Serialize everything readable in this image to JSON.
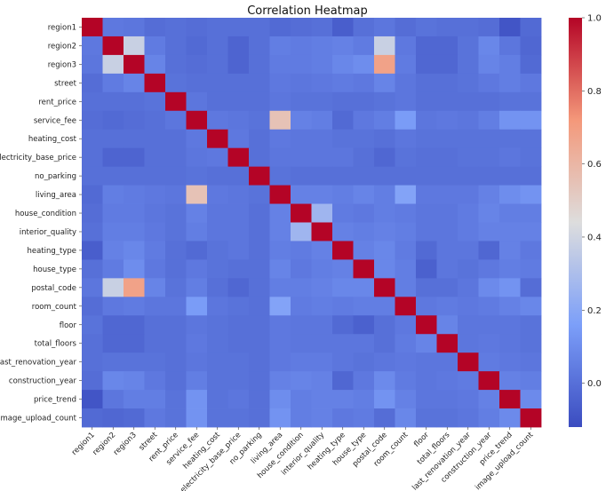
{
  "chart_data": {
    "type": "heatmap",
    "title": "Correlation Heatmap",
    "xlabel": "",
    "ylabel": "",
    "labels": [
      "region1",
      "region2",
      "region3",
      "street",
      "rent_price",
      "service_fee",
      "heating_cost",
      "electricity_base_price",
      "no_parking",
      "living_area",
      "house_condition",
      "interior_quality",
      "heating_type",
      "house_type",
      "postal_code",
      "room_count",
      "floor",
      "total_floors",
      "last_renovation_year",
      "construction_year",
      "price_trend",
      "image_upload_count"
    ],
    "colorbar": {
      "min": -0.12,
      "max": 1.0,
      "ticks": [
        0.0,
        0.2,
        0.4,
        0.6,
        0.8,
        1.0
      ],
      "tick_labels": [
        "0.0",
        "0.2",
        "0.4",
        "0.6",
        "0.8",
        "1.0"
      ],
      "colormap": "coolwarm"
    },
    "matrix": [
      [
        1.0,
        0.03,
        0.02,
        -0.01,
        0.0,
        -0.01,
        0.0,
        0.0,
        0.0,
        -0.02,
        -0.01,
        0.0,
        -0.06,
        0.0,
        0.02,
        -0.01,
        0.01,
        0.0,
        0.0,
        -0.01,
        -0.09,
        -0.02
      ],
      [
        0.03,
        1.0,
        0.38,
        0.04,
        0.0,
        -0.02,
        0.0,
        -0.04,
        0.0,
        0.05,
        0.04,
        0.05,
        0.06,
        0.04,
        0.38,
        0.03,
        -0.03,
        -0.03,
        0.01,
        0.08,
        0.02,
        -0.03
      ],
      [
        0.02,
        0.38,
        1.0,
        0.07,
        0.0,
        -0.01,
        0.0,
        -0.04,
        0.0,
        0.04,
        0.04,
        0.05,
        0.08,
        0.1,
        0.68,
        0.04,
        -0.03,
        -0.03,
        0.01,
        0.07,
        0.05,
        -0.02
      ],
      [
        -0.01,
        0.04,
        0.07,
        1.0,
        0.01,
        0.0,
        0.0,
        0.0,
        0.0,
        0.03,
        0.02,
        0.03,
        0.04,
        0.03,
        0.07,
        0.02,
        0.0,
        0.0,
        0.01,
        0.03,
        0.05,
        0.03
      ],
      [
        0.0,
        0.0,
        0.0,
        0.01,
        1.0,
        0.02,
        0.0,
        0.0,
        0.0,
        0.02,
        0.01,
        0.01,
        0.0,
        0.0,
        0.01,
        0.02,
        0.0,
        0.0,
        0.0,
        0.0,
        0.01,
        0.01
      ],
      [
        -0.01,
        -0.02,
        -0.01,
        0.0,
        0.02,
        1.0,
        0.03,
        0.02,
        0.01,
        0.55,
        0.06,
        0.05,
        -0.02,
        0.03,
        0.05,
        0.15,
        0.02,
        0.03,
        0.02,
        0.05,
        0.12,
        0.12
      ],
      [
        0.0,
        0.0,
        0.0,
        0.0,
        0.0,
        0.03,
        1.0,
        0.03,
        0.0,
        0.03,
        0.02,
        0.02,
        0.01,
        0.01,
        0.0,
        0.02,
        0.01,
        0.01,
        0.01,
        0.01,
        0.01,
        0.01
      ],
      [
        0.0,
        -0.04,
        -0.04,
        0.0,
        0.0,
        0.02,
        0.03,
        1.0,
        0.0,
        0.02,
        0.02,
        0.02,
        0.02,
        0.0,
        -0.03,
        0.01,
        0.0,
        0.0,
        0.01,
        0.01,
        0.02,
        0.01
      ],
      [
        0.0,
        0.0,
        0.0,
        0.0,
        0.0,
        0.01,
        0.0,
        0.0,
        1.0,
        0.01,
        0.0,
        0.0,
        0.0,
        0.0,
        0.0,
        0.0,
        0.0,
        0.0,
        0.0,
        0.0,
        0.0,
        0.0
      ],
      [
        -0.02,
        0.05,
        0.04,
        0.03,
        0.02,
        0.55,
        0.03,
        0.02,
        0.01,
        1.0,
        0.06,
        0.06,
        0.05,
        0.07,
        0.05,
        0.18,
        0.03,
        0.03,
        0.03,
        0.06,
        0.1,
        0.12
      ],
      [
        -0.01,
        0.04,
        0.04,
        0.02,
        0.01,
        0.06,
        0.02,
        0.02,
        0.0,
        0.06,
        1.0,
        0.26,
        0.04,
        0.03,
        0.05,
        0.04,
        0.02,
        0.02,
        0.04,
        0.07,
        0.05,
        0.05
      ],
      [
        0.0,
        0.05,
        0.05,
        0.03,
        0.01,
        0.05,
        0.02,
        0.02,
        0.0,
        0.06,
        0.26,
        1.0,
        0.06,
        0.05,
        0.06,
        0.05,
        0.02,
        0.02,
        0.04,
        0.06,
        0.06,
        0.06
      ],
      [
        -0.06,
        0.06,
        0.08,
        0.04,
        0.0,
        -0.02,
        0.01,
        0.02,
        0.0,
        0.05,
        0.04,
        0.06,
        1.0,
        0.06,
        0.08,
        0.04,
        -0.02,
        0.02,
        0.02,
        -0.03,
        0.06,
        0.03
      ],
      [
        0.0,
        0.04,
        0.1,
        0.03,
        0.0,
        0.03,
        0.01,
        0.0,
        0.0,
        0.07,
        0.03,
        0.05,
        0.06,
        1.0,
        0.08,
        0.05,
        -0.05,
        0.02,
        0.01,
        0.03,
        0.05,
        0.04
      ],
      [
        0.02,
        0.38,
        0.68,
        0.07,
        0.01,
        0.05,
        0.0,
        -0.03,
        0.0,
        0.05,
        0.05,
        0.06,
        0.08,
        0.08,
        1.0,
        0.05,
        0.0,
        0.0,
        0.02,
        0.09,
        0.12,
        -0.01
      ],
      [
        -0.01,
        0.03,
        0.04,
        0.02,
        0.02,
        0.15,
        0.02,
        0.01,
        0.0,
        0.18,
        0.04,
        0.05,
        0.04,
        0.05,
        0.05,
        1.0,
        0.03,
        0.04,
        0.03,
        0.04,
        0.06,
        0.08
      ],
      [
        0.01,
        -0.03,
        -0.03,
        0.0,
        0.0,
        0.02,
        0.01,
        0.0,
        0.0,
        0.03,
        0.02,
        0.02,
        -0.02,
        -0.05,
        0.0,
        0.03,
        1.0,
        0.07,
        0.02,
        0.02,
        0.02,
        0.01
      ],
      [
        0.0,
        -0.03,
        -0.03,
        0.0,
        0.0,
        0.03,
        0.01,
        0.0,
        0.0,
        0.03,
        0.02,
        0.02,
        0.02,
        0.02,
        0.0,
        0.04,
        0.07,
        1.0,
        0.02,
        0.03,
        0.02,
        0.01
      ],
      [
        0.0,
        0.01,
        0.01,
        0.01,
        0.0,
        0.02,
        0.01,
        0.01,
        0.0,
        0.03,
        0.04,
        0.04,
        0.02,
        0.01,
        0.02,
        0.03,
        0.02,
        0.02,
        1.0,
        0.04,
        0.03,
        0.02
      ],
      [
        -0.01,
        0.08,
        0.07,
        0.03,
        0.0,
        0.05,
        0.01,
        0.01,
        0.0,
        0.06,
        0.07,
        0.06,
        -0.03,
        0.03,
        0.09,
        0.04,
        0.02,
        0.03,
        0.04,
        1.0,
        0.06,
        0.05
      ],
      [
        -0.09,
        0.02,
        0.05,
        0.05,
        0.01,
        0.12,
        0.01,
        0.02,
        0.0,
        0.1,
        0.05,
        0.06,
        0.06,
        0.05,
        0.12,
        0.06,
        0.02,
        0.02,
        0.03,
        0.06,
        1.0,
        0.09
      ],
      [
        -0.02,
        -0.03,
        -0.02,
        0.03,
        0.01,
        0.12,
        0.01,
        0.01,
        0.0,
        0.12,
        0.05,
        0.06,
        0.03,
        0.04,
        -0.01,
        0.08,
        0.01,
        0.01,
        0.02,
        0.05,
        0.09,
        1.0
      ]
    ]
  }
}
